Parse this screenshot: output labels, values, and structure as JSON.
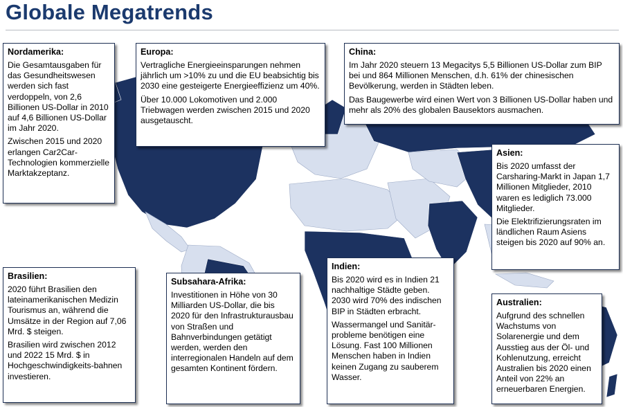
{
  "page": {
    "title": "Globale Megatrends"
  },
  "colors": {
    "land_dark": "#1c3260",
    "land_light": "#d7dfee",
    "title": "#1b3a6e",
    "box_border": "#1c2e52"
  },
  "boxes": {
    "nordamerika": {
      "heading": "Nordamerika:",
      "p1": "Die Gesamtausgaben für das Gesundheitswesen werden sich fast verdoppeln, von 2,6 Billionen US-Dollar in 2010 auf 4,6 Billionen US-Dollar im Jahr 2020.",
      "p2": "Zwischen 2015 und 2020 erlangen Car2Car-Technologien kommerzielle Marktakzeptanz."
    },
    "europa": {
      "heading": "Europa:",
      "p1": "Vertragliche Energieeinsparungen nehmen jährlich um >10% zu und die EU beabsichtig bis 2030 eine gesteigerte Energieeffizienz um 40%.",
      "p2": "Über 10.000 Lokomotiven und 2.000 Triebwagen werden zwischen 2015 und 2020 ausgetauscht."
    },
    "china": {
      "heading": "China:",
      "p1": "Im Jahr 2020 steuern 13 Megacitys 5,5 Billionen US-Dollar zum BIP bei und 864 Millionen Menschen, d.h. 61% der chinesischen Bevölkerung, werden in Städten leben.",
      "p2": "Das Baugewerbe wird einen Wert von 3 Billionen US-Dollar haben und mehr als 20% des globalen Bausektors ausmachen."
    },
    "asien": {
      "heading": "Asien:",
      "p1": "Bis 2020 umfasst der Carsharing-Markt in Japan 1,7 Millionen Mitglieder, 2010 waren es lediglich 73.000 Mitglieder.",
      "p2": "Die Elektrifizierungsraten im ländlichen Raum Asiens steigen bis 2020 auf 90% an."
    },
    "brasilien": {
      "heading": "Brasilien:",
      "p1": "2020 führt Brasilien den lateinamerikanischen Medizin Tourismus an, während die Umsätze in der Region auf 7,06 Mrd. $ steigen.",
      "p2": "Brasilien wird zwischen 2012 und 2022 15 Mrd. $ in Hochgeschwindigkeits-bahnen investieren."
    },
    "subsahara": {
      "heading": "Subsahara-Afrika:",
      "p1": "Investitionen in Höhe von 30 Milliarden US-Dollar, die bis 2020 für den Infrastrukturausbau von Straßen und Bahnverbindungen getätigt werden, werden den interregionalen Handeln auf dem gesamten Kontinent fördern."
    },
    "indien": {
      "heading": "Indien:",
      "p1": "Bis 2020 wird es in Indien 21 nachhaltige Städte geben. 2030 wird 70% des indischen BIP in Städten erbracht.",
      "p2": "Wassermangel und Sanitär-probleme benötigen eine Lösung. Fast 100 Millionen Menschen haben in Indien keinen Zugang zu sauberem Wasser."
    },
    "australien": {
      "heading": "Australien:",
      "p1": "Aufgrund des schnellen Wachstums von Solarenergie und dem Ausstieg aus der Öl- und Kohlenutzung, erreicht Australien bis 2020 einen Anteil von 22% an erneuerbaren Energien."
    }
  }
}
